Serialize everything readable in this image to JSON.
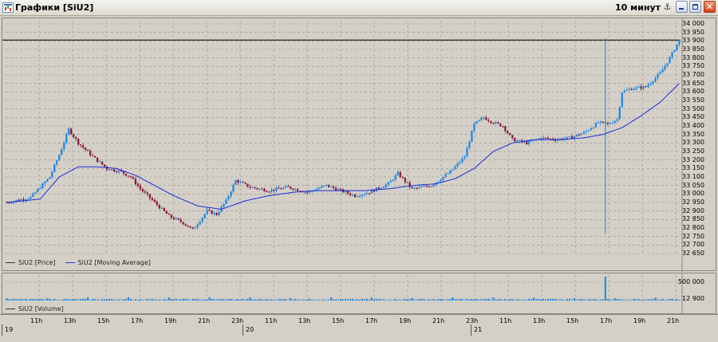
{
  "window": {
    "title": "Графики [SiU2]",
    "interval": "10 минут",
    "pin_icon": "anchor-icon",
    "buttons": [
      "minimize-icon",
      "maximize-icon",
      "close-icon"
    ]
  },
  "price_pane": {
    "legend": [
      {
        "label": "SiU2 [Price]",
        "color": "#333333"
      },
      {
        "label": "SiU2 [Moving Average]",
        "color": "#2f3cd8"
      }
    ],
    "y_ticks": [
      "34 000",
      "33 950",
      "33 900",
      "33 850",
      "33 800",
      "33 750",
      "33 700",
      "33 650",
      "33 600",
      "33 550",
      "33 500",
      "33 450",
      "33 400",
      "33 350",
      "33 300",
      "33 250",
      "33 200",
      "33 150",
      "33 100",
      "33 050",
      "33 000",
      "32 950",
      "32 900",
      "32 850",
      "32 800",
      "32 750",
      "32 700",
      "32 650"
    ],
    "current_price_line": 33905,
    "colors": {
      "up": "#1e88e5",
      "down": "#8b1a3a",
      "ma": "#1a2bd8",
      "grid": "#8f8f8f"
    }
  },
  "volume_pane": {
    "legend": [
      {
        "label": "SiU2 [Volume]",
        "color": "#333333"
      }
    ],
    "y_ticks": [
      "500 000",
      "12 900"
    ],
    "color": "#1e88e5"
  },
  "time_axis": {
    "hour_labels": [
      "11h",
      "13h",
      "15h",
      "17h",
      "19h",
      "21h",
      "23h",
      "11h",
      "13h",
      "15h",
      "17h",
      "19h",
      "21h",
      "23h",
      "11h",
      "13h",
      "15h",
      "17h",
      "19h",
      "21h"
    ],
    "date_labels": [
      "19",
      "20",
      "21"
    ]
  },
  "chart_data": {
    "type": "candlestick",
    "ylim": [
      32650,
      34000
    ],
    "price_anchors": [
      [
        0,
        32950
      ],
      [
        10,
        32980
      ],
      [
        18,
        33100
      ],
      [
        22,
        33230
      ],
      [
        26,
        33380
      ],
      [
        30,
        33300
      ],
      [
        36,
        33220
      ],
      [
        42,
        33150
      ],
      [
        48,
        33130
      ],
      [
        52,
        33100
      ],
      [
        56,
        33030
      ],
      [
        62,
        32950
      ],
      [
        68,
        32870
      ],
      [
        74,
        32830
      ],
      [
        78,
        32790
      ],
      [
        84,
        32900
      ],
      [
        88,
        32880
      ],
      [
        92,
        32960
      ],
      [
        96,
        33080
      ],
      [
        102,
        33040
      ],
      [
        110,
        33020
      ],
      [
        118,
        33040
      ],
      [
        126,
        33010
      ],
      [
        134,
        33050
      ],
      [
        140,
        33020
      ],
      [
        146,
        32990
      ],
      [
        152,
        33010
      ],
      [
        160,
        33060
      ],
      [
        164,
        33120
      ],
      [
        170,
        33030
      ],
      [
        178,
        33050
      ],
      [
        186,
        33130
      ],
      [
        192,
        33220
      ],
      [
        196,
        33410
      ],
      [
        200,
        33450
      ],
      [
        204,
        33420
      ],
      [
        208,
        33400
      ],
      [
        212,
        33320
      ],
      [
        218,
        33300
      ],
      [
        224,
        33330
      ],
      [
        230,
        33320
      ],
      [
        236,
        33330
      ],
      [
        242,
        33360
      ],
      [
        248,
        33420
      ],
      [
        252,
        33410
      ],
      [
        256,
        33440
      ],
      [
        258,
        33600
      ],
      [
        262,
        33620
      ],
      [
        268,
        33630
      ],
      [
        274,
        33710
      ],
      [
        278,
        33800
      ],
      [
        282,
        33905
      ]
    ],
    "ma_anchors": [
      [
        0,
        32950
      ],
      [
        14,
        32970
      ],
      [
        22,
        33100
      ],
      [
        30,
        33160
      ],
      [
        38,
        33160
      ],
      [
        46,
        33150
      ],
      [
        54,
        33110
      ],
      [
        62,
        33050
      ],
      [
        70,
        32990
      ],
      [
        80,
        32930
      ],
      [
        90,
        32910
      ],
      [
        100,
        32960
      ],
      [
        110,
        32990
      ],
      [
        120,
        33010
      ],
      [
        130,
        33020
      ],
      [
        140,
        33020
      ],
      [
        150,
        33020
      ],
      [
        160,
        33030
      ],
      [
        170,
        33050
      ],
      [
        180,
        33060
      ],
      [
        188,
        33090
      ],
      [
        196,
        33150
      ],
      [
        204,
        33250
      ],
      [
        212,
        33300
      ],
      [
        222,
        33320
      ],
      [
        232,
        33320
      ],
      [
        242,
        33330
      ],
      [
        250,
        33350
      ],
      [
        258,
        33390
      ],
      [
        266,
        33460
      ],
      [
        274,
        33540
      ],
      [
        282,
        33650
      ]
    ],
    "volume_spike_index": 251,
    "volume_spike_value": 500000
  }
}
